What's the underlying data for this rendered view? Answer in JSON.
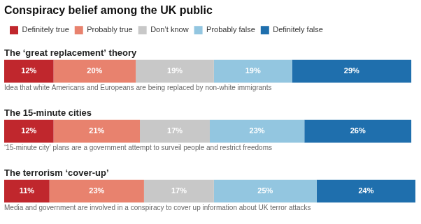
{
  "chart_data": {
    "type": "bar",
    "orientation": "horizontal",
    "stacked": true,
    "title": "Conspiracy belief among the UK public",
    "categories": [
      "The ‘great replacement’ theory",
      "The 15-minute cities",
      "The terrorism ‘cover-up’"
    ],
    "annotations": [
      "Idea that white Americans and Europeans are being replaced by non-white immigrants",
      "‘15-minute city’ plans are a government attempt to surveil people and restrict freedoms",
      "Media and government are involved in a conspiracy to cover up information about UK terror attacks"
    ],
    "series": [
      {
        "name": "Definitely true",
        "color": "#c0272d",
        "values": [
          12,
          12,
          11
        ],
        "value_labels": [
          "12%",
          "12%",
          "11%"
        ]
      },
      {
        "name": "Probably true",
        "color": "#e8826e",
        "values": [
          20,
          21,
          23
        ],
        "value_labels": [
          "20%",
          "21%",
          "23%"
        ]
      },
      {
        "name": "Don’t know",
        "color": "#c8c8c8",
        "values": [
          19,
          17,
          17
        ],
        "value_labels": [
          "19%",
          "17%",
          "17%"
        ]
      },
      {
        "name": "Probably false",
        "color": "#93c6e0",
        "values": [
          19,
          23,
          25
        ],
        "value_labels": [
          "19%",
          "23%",
          "25%"
        ]
      },
      {
        "name": "Definitely false",
        "color": "#1f6fad",
        "values": [
          29,
          26,
          24
        ],
        "value_labels": [
          "29%",
          "26%",
          "24%"
        ]
      }
    ],
    "xlim": [
      0,
      100
    ],
    "data_labels": true,
    "tick_labels": false,
    "grid": false,
    "legend": "top"
  }
}
